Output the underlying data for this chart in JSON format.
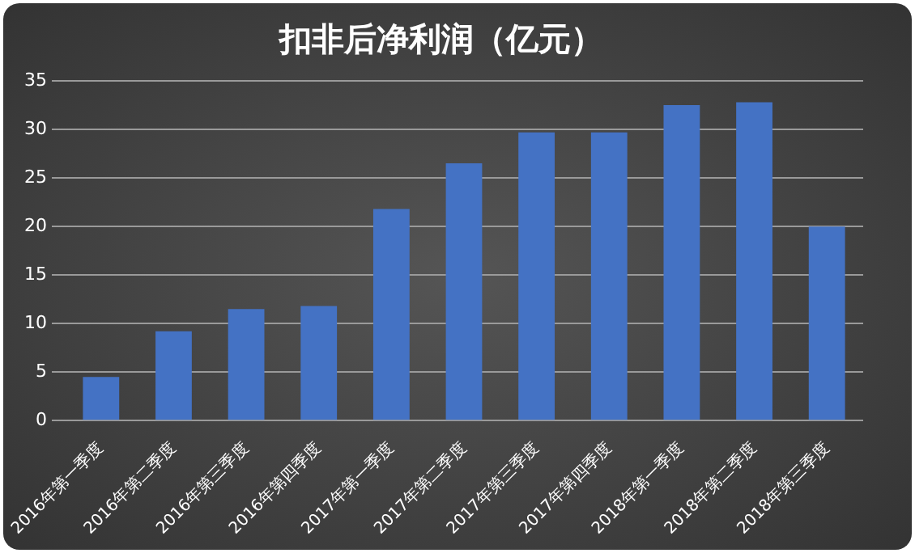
{
  "chart_data": {
    "type": "bar",
    "title": "扣非后净利润（亿元）",
    "categories": [
      "2016年第一季度",
      "2016年第二季度",
      "2016年第三季度",
      "2016年第四季度",
      "2017年第一季度",
      "2017年第二季度",
      "2017年第三季度",
      "2017年第四季度",
      "2018年第一季度",
      "2018年第二季度",
      "2018年第三季度"
    ],
    "values": [
      4.5,
      9.2,
      11.5,
      11.8,
      21.8,
      26.5,
      29.7,
      29.7,
      32.5,
      32.8,
      20
    ],
    "color": "#4472c4",
    "ylim": [
      0,
      35
    ],
    "yticks": [
      0,
      5,
      10,
      15,
      20,
      25,
      30,
      35
    ],
    "grid": "y",
    "legend": false
  }
}
